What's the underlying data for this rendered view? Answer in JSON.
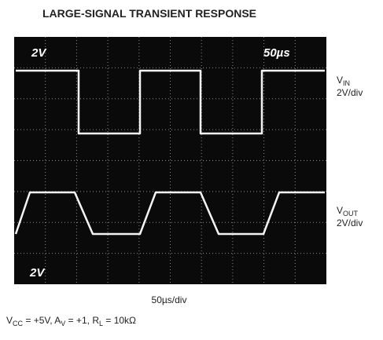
{
  "title": "LARGE-SIGNAL TRANSIENT RESPONSE",
  "screen_labels": {
    "top_left": "2V",
    "top_right": "50µs",
    "bottom_left": "2V"
  },
  "channels": [
    {
      "name": {
        "main": "V",
        "sub": "IN"
      },
      "scale": "2V/div"
    },
    {
      "name": {
        "main": "V",
        "sub": "OUT"
      },
      "scale": "2V/div"
    }
  ],
  "time_scale": "50µs/div",
  "conditions": [
    {
      "text": "V"
    },
    {
      "sub": "CC"
    },
    {
      "text": " = +5V, A"
    },
    {
      "sub": "V"
    },
    {
      "text": " = +1, R"
    },
    {
      "sub": "L"
    },
    {
      "text": " = 10kΩ"
    }
  ]
}
